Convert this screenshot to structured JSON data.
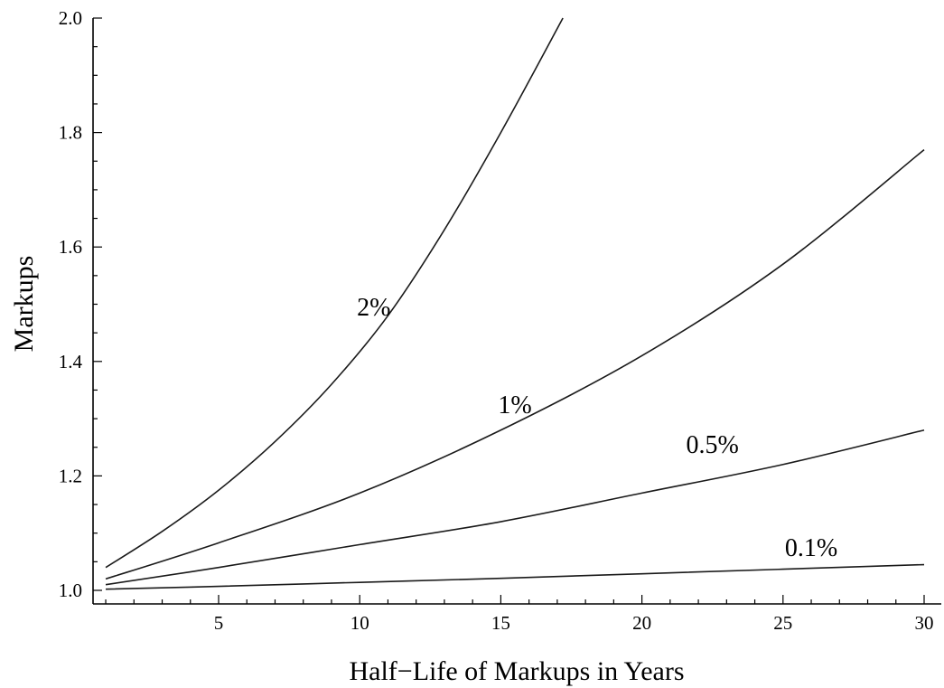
{
  "chart_data": {
    "type": "line",
    "title": "",
    "xlabel": "Half−Life of Markups in Years",
    "ylabel": "Markups",
    "xlim": [
      0,
      31
    ],
    "ylim": [
      0.98,
      2.0
    ],
    "x_ticks": [
      5,
      10,
      15,
      20,
      25,
      30
    ],
    "x_tick_labels": [
      "5",
      "10",
      "15",
      "20",
      "25",
      "30"
    ],
    "y_ticks": [
      1.0,
      1.2,
      1.4,
      1.6,
      1.8,
      2.0
    ],
    "y_tick_labels": [
      "1.0",
      "1.2",
      "1.4",
      "1.6",
      "1.8",
      "2.0"
    ],
    "grid": false,
    "series": [
      {
        "name": "2%",
        "x": [
          1,
          3,
          5,
          7,
          9,
          11,
          13,
          15,
          17.2
        ],
        "y": [
          1.04,
          1.103,
          1.175,
          1.26,
          1.36,
          1.48,
          1.63,
          1.8,
          2.0
        ]
      },
      {
        "name": "1%",
        "x": [
          1,
          5,
          10,
          15,
          20,
          25,
          30
        ],
        "y": [
          1.02,
          1.083,
          1.17,
          1.28,
          1.41,
          1.57,
          1.77
        ]
      },
      {
        "name": "0.5%",
        "x": [
          1,
          5,
          10,
          15,
          20,
          25,
          30
        ],
        "y": [
          1.01,
          1.04,
          1.08,
          1.12,
          1.17,
          1.22,
          1.28
        ]
      },
      {
        "name": "0.1%",
        "x": [
          1,
          5,
          10,
          15,
          20,
          25,
          30
        ],
        "y": [
          1.002,
          1.007,
          1.014,
          1.021,
          1.029,
          1.037,
          1.045
        ]
      }
    ],
    "annotations": [
      {
        "text": "2%",
        "x": 10.5,
        "y": 1.48
      },
      {
        "text": "1%",
        "x": 15.5,
        "y": 1.31
      },
      {
        "text": "0.5%",
        "x": 22.5,
        "y": 1.24
      },
      {
        "text": "0.1%",
        "x": 26,
        "y": 1.06
      }
    ]
  }
}
